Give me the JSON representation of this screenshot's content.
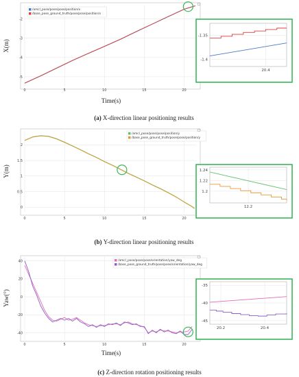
{
  "captions": [
    {
      "label": "(a)",
      "text": "X-direction linear positioning results"
    },
    {
      "label": "(b)",
      "text": "Y-direction linear positioning results"
    },
    {
      "label": "(c)",
      "text": "Z-direction rotation positioning results"
    }
  ],
  "colors": {
    "highlight": "#3cb55a",
    "grid": "#e3e3e3"
  },
  "chart_data": [
    {
      "type": "line",
      "xlabel": "Time(s)",
      "ylabel": "X(m)",
      "xlim": [
        0,
        21.5
      ],
      "ylim": [
        -5.5,
        -1.3
      ],
      "xticks": [
        0,
        5,
        10,
        15,
        20
      ],
      "yticks": [
        -2,
        -3,
        -4,
        -5
      ],
      "highlight_circle": {
        "x": 20.5,
        "y": -1.36
      },
      "series": [
        {
          "name": "/amcl_pose/pose/pose/position/x",
          "color": "#4a78c8",
          "x": [
            0,
            2,
            4,
            6,
            8,
            10,
            12,
            14,
            16,
            18,
            20,
            21.4
          ],
          "y": [
            -5.34,
            -4.96,
            -4.56,
            -4.16,
            -3.79,
            -3.43,
            -3.06,
            -2.66,
            -2.27,
            -1.88,
            -1.5,
            -1.32
          ]
        },
        {
          "name": "/base_pose_ground_truth/pose/pose/position/x",
          "color": "#d9413a",
          "x": [
            0,
            2,
            4,
            6,
            8,
            10,
            12,
            14,
            16,
            18,
            20,
            21.4
          ],
          "y": [
            -5.33,
            -4.95,
            -4.55,
            -4.15,
            -3.78,
            -3.42,
            -3.05,
            -2.65,
            -2.26,
            -1.87,
            -1.49,
            -1.31
          ]
        }
      ],
      "inset": {
        "xlim": [
          20.0,
          20.55
        ],
        "ylim": [
          -1.415,
          -1.325
        ],
        "xticks": [
          20.4
        ],
        "yticks": [
          -1.35,
          -1.4
        ],
        "series": [
          {
            "color": "#4a78c8",
            "x": [
              20.0,
              20.55
            ],
            "y": [
              -1.393,
              -1.366
            ]
          },
          {
            "color": "#d9413a",
            "step": true,
            "x": [
              20.0,
              20.08,
              20.16,
              20.24,
              20.32,
              20.4,
              20.48,
              20.55
            ],
            "y": [
              -1.356,
              -1.352,
              -1.348,
              -1.344,
              -1.341,
              -1.338,
              -1.335,
              -1.335
            ]
          }
        ]
      }
    },
    {
      "type": "line",
      "xlabel": "",
      "ylabel": "Y(m)",
      "xlim": [
        0,
        21.5
      ],
      "ylim": [
        -0.15,
        2.45
      ],
      "xticks": [
        0,
        5,
        10,
        15,
        20
      ],
      "yticks": [
        0,
        0.5,
        1,
        1.5,
        2
      ],
      "highlight_circle": {
        "x": 12.2,
        "y": 1.2
      },
      "series": [
        {
          "name": "/amcl_pose/pose/pose/position/y",
          "color": "#64c070",
          "x": [
            0,
            1,
            2,
            3,
            4,
            5,
            6,
            7,
            8,
            9,
            10,
            11,
            12,
            13,
            14,
            15,
            16,
            17,
            18,
            19,
            20,
            21,
            21.3
          ],
          "y": [
            2.15,
            2.26,
            2.3,
            2.28,
            2.2,
            2.09,
            1.97,
            1.85,
            1.72,
            1.6,
            1.47,
            1.35,
            1.22,
            1.09,
            0.97,
            0.85,
            0.72,
            0.6,
            0.47,
            0.33,
            0.17,
            0.02,
            -0.04
          ]
        },
        {
          "name": "/base_pose_ground_truth/pose/pose/position/y",
          "color": "#e69a32",
          "x": [
            0,
            1,
            2,
            3,
            4,
            5,
            6,
            7,
            8,
            9,
            10,
            11,
            12,
            13,
            14,
            15,
            16,
            17,
            18,
            19,
            20,
            21,
            21.3
          ],
          "y": [
            2.14,
            2.25,
            2.29,
            2.27,
            2.19,
            2.08,
            1.96,
            1.84,
            1.71,
            1.59,
            1.46,
            1.34,
            1.21,
            1.08,
            0.96,
            0.84,
            0.71,
            0.59,
            0.46,
            0.32,
            0.16,
            0.01,
            -0.05
          ]
        }
      ],
      "inset": {
        "xlim": [
          11.9,
          12.5
        ],
        "ylim": [
          1.178,
          1.245
        ],
        "xticks": [
          12.2
        ],
        "yticks": [
          1.24,
          1.22,
          1.2
        ],
        "series": [
          {
            "color": "#64c070",
            "x": [
              11.9,
              12.5
            ],
            "y": [
              1.236,
              1.203
            ]
          },
          {
            "color": "#e69a32",
            "step": true,
            "x": [
              11.9,
              11.98,
              12.06,
              12.14,
              12.22,
              12.3,
              12.38,
              12.46,
              12.5
            ],
            "y": [
              1.213,
              1.209,
              1.205,
              1.201,
              1.197,
              1.193,
              1.189,
              1.185,
              1.183
            ]
          }
        ]
      }
    },
    {
      "type": "line",
      "xlabel": "Time(s)",
      "ylabel": "Yaw(°)",
      "xlim": [
        0,
        21.5
      ],
      "ylim": [
        -48,
        45
      ],
      "xticks": [
        0,
        5,
        10,
        15,
        20
      ],
      "yticks": [
        40,
        20,
        0,
        -20,
        -40
      ],
      "highlight_circle": {
        "x": 20.5,
        "y": -39
      },
      "series": [
        {
          "name": "/amcl_pose/pose/pose/orientation/yaw_deg",
          "color": "#e46bb6",
          "x": [
            0,
            0.5,
            1,
            1.5,
            2,
            2.5,
            3,
            3.5,
            4,
            4.5,
            5,
            5.5,
            6,
            6.5,
            7,
            7.5,
            8,
            8.5,
            9,
            9.5,
            10,
            10.5,
            11,
            11.5,
            12,
            12.5,
            13,
            13.5,
            14,
            14.5,
            15,
            15.5,
            16,
            16.5,
            17,
            17.5,
            18,
            18.5,
            19,
            19.5,
            20,
            20.5,
            21
          ],
          "y": [
            35,
            25,
            15,
            5,
            -5,
            -15,
            -22,
            -26,
            -27,
            -25,
            -23,
            -26,
            -25,
            -23,
            -26,
            -29,
            -31,
            -32,
            -33,
            -32,
            -32,
            -31,
            -30,
            -30,
            -31,
            -29,
            -28,
            -30,
            -31,
            -32,
            -34,
            -40,
            -38,
            -39,
            -37,
            -38,
            -38,
            -39,
            -40,
            -39,
            -39,
            -38,
            -33
          ]
        },
        {
          "name": "/base_pose_ground_truth/pose/pose/orientation/yaw_deg",
          "color": "#8b5fc9",
          "x": [
            0,
            0.5,
            1,
            1.5,
            2,
            2.5,
            3,
            3.5,
            4,
            4.5,
            5,
            5.5,
            6,
            6.5,
            7,
            7.5,
            8,
            8.5,
            9,
            9.5,
            10,
            10.5,
            11,
            11.5,
            12,
            12.5,
            13,
            13.5,
            14,
            14.5,
            15,
            15.5,
            16,
            16.5,
            17,
            17.5,
            18,
            18.5,
            19,
            19.5,
            20,
            20.5,
            21
          ],
          "y": [
            40,
            28,
            12,
            2,
            -10,
            -18,
            -24,
            -28,
            -26,
            -24,
            -26,
            -24,
            -27,
            -24,
            -28,
            -30,
            -33,
            -31,
            -34,
            -31,
            -33,
            -30,
            -31,
            -29,
            -32,
            -28,
            -29,
            -31,
            -30,
            -33,
            -33,
            -41,
            -37,
            -40,
            -36,
            -39,
            -37,
            -40,
            -41,
            -38,
            -42,
            -42,
            -36
          ]
        }
      ],
      "inset": {
        "xlim": [
          20.15,
          20.5
        ],
        "ylim": [
          -46,
          -34
        ],
        "xticks": [
          20.2,
          20.4
        ],
        "yticks": [
          -35,
          -40,
          -45
        ],
        "series": [
          {
            "color": "#e46bb6",
            "x": [
              20.15,
              20.5
            ],
            "y": [
              -39.8,
              -38.2
            ]
          },
          {
            "color": "#8b5fc9",
            "step": true,
            "x": [
              20.15,
              20.18,
              20.21,
              20.25,
              20.29,
              20.33,
              20.37,
              20.41,
              20.45,
              20.5
            ],
            "y": [
              -42.0,
              -42.3,
              -42.6,
              -43.0,
              -43.3,
              -43.6,
              -43.7,
              -43.4,
              -43.1,
              -42.9
            ]
          }
        ]
      }
    }
  ]
}
